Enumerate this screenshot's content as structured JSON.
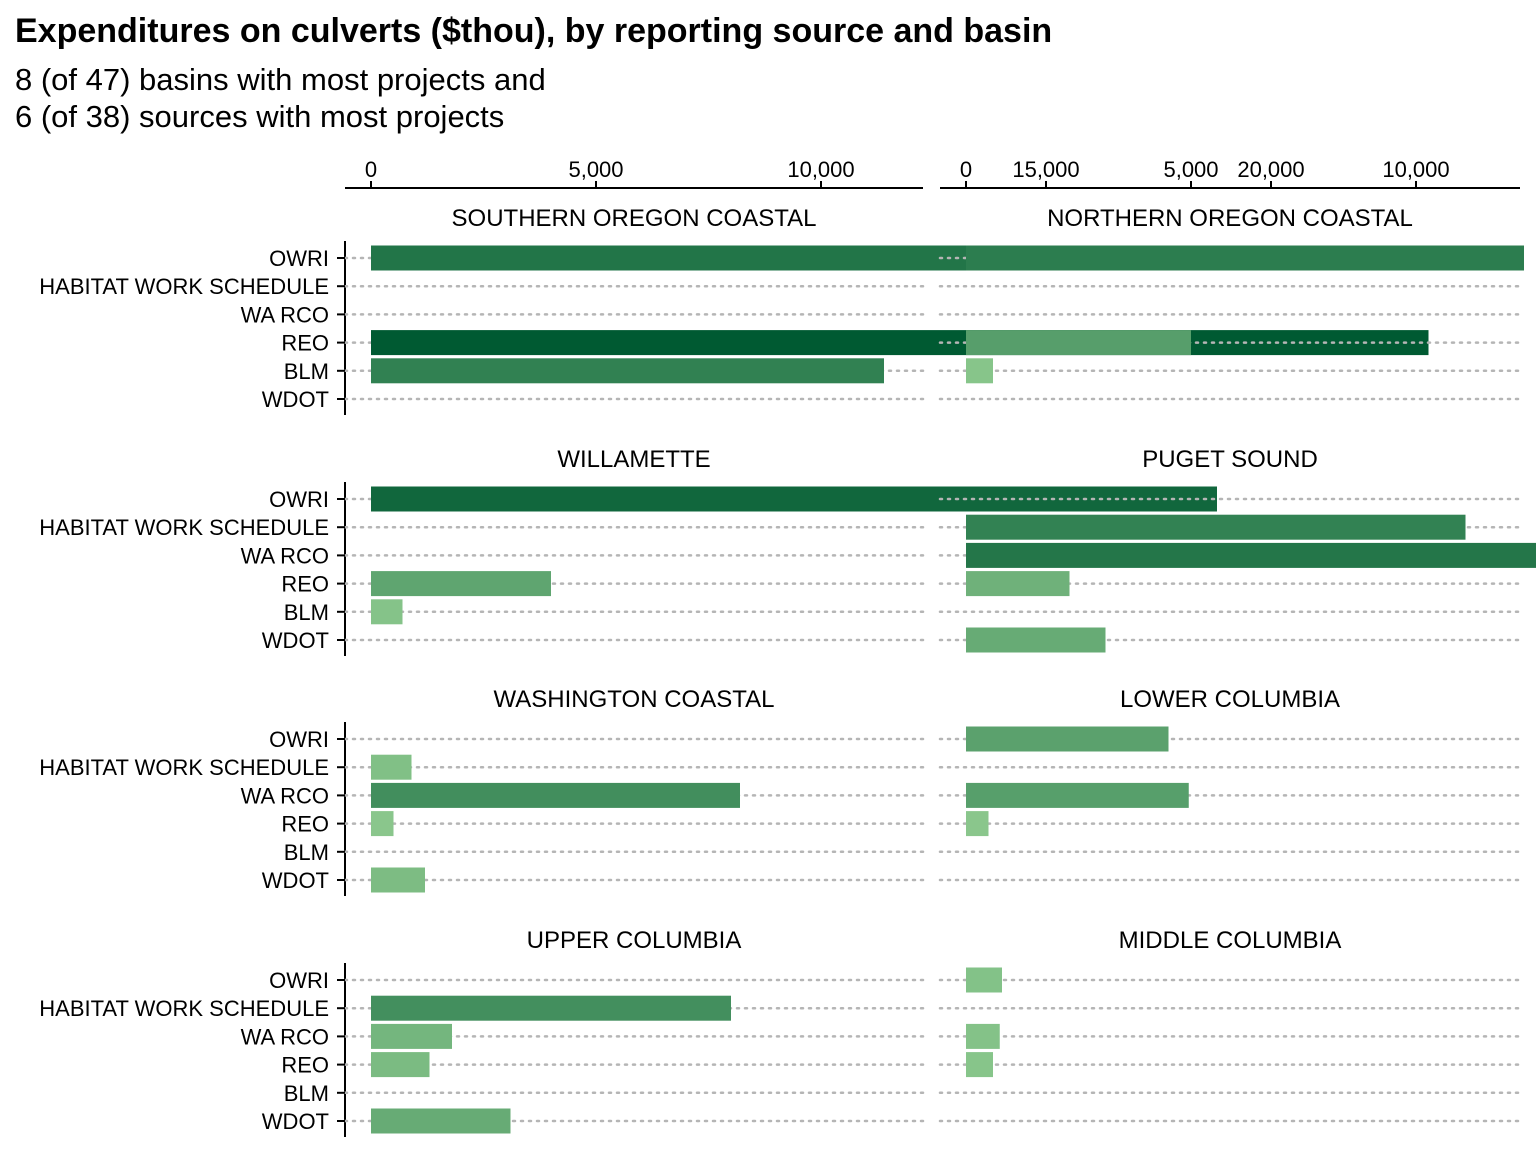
{
  "title": "Expenditures on culverts ($thou), by reporting source and basin",
  "subtitle_line1": "8 (of 47) basins with most projects and",
  "subtitle_line2": "6 (of 38) sources with most projects",
  "chart_data": {
    "type": "bar",
    "orientation": "horizontal",
    "faceted": true,
    "x_axis_position": "top",
    "xlim": [
      0,
      24500
    ],
    "xticks": [
      0,
      5000,
      10000,
      15000,
      20000
    ],
    "xtick_labels": [
      "0",
      "5,000",
      "10,000",
      "15,000",
      "20,000"
    ],
    "categories": [
      "OWRI",
      "HABITAT WORK SCHEDULE",
      "WA RCO",
      "REO",
      "BLM",
      "WDOT"
    ],
    "color_scale": {
      "low": "#a1d99b",
      "high": "#005a32"
    },
    "grid": "dotted horizontal lines",
    "legend": "none",
    "panels": [
      {
        "basin": "SOUTHERN OREGON COASTAL",
        "values": [
          14700,
          null,
          null,
          23500,
          11400,
          null
        ]
      },
      {
        "basin": "NORTHERN OREGON COASTAL",
        "values": [
          12400,
          null,
          null,
          5000,
          600,
          null
        ]
      },
      {
        "basin": "WILLAMETTE",
        "values": [
          18800,
          null,
          null,
          4000,
          700,
          null
        ]
      },
      {
        "basin": "PUGET SOUND",
        "values": [
          null,
          11100,
          14200,
          2300,
          null,
          3100
        ]
      },
      {
        "basin": "WASHINGTON COASTAL",
        "values": [
          null,
          900,
          8200,
          500,
          null,
          1200
        ]
      },
      {
        "basin": "LOWER COLUMBIA",
        "values": [
          4500,
          null,
          4950,
          500,
          null,
          null
        ]
      },
      {
        "basin": "UPPER COLUMBIA",
        "values": [
          null,
          8000,
          1800,
          1300,
          null,
          3100
        ]
      },
      {
        "basin": "MIDDLE COLUMBIA",
        "values": [
          800,
          null,
          750,
          600,
          null,
          null
        ]
      }
    ]
  }
}
